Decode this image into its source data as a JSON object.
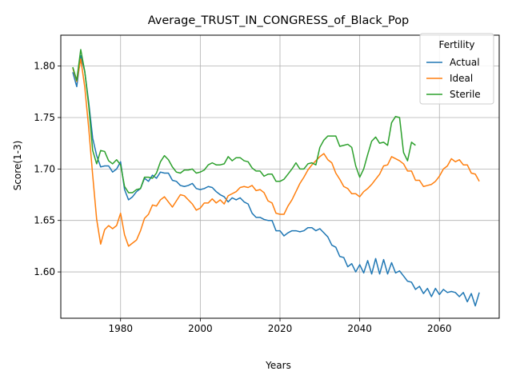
{
  "chart_data": {
    "type": "line",
    "title": "Average_TRUST_IN_CONGRESS_of_Black_Pop",
    "xlabel": "Years",
    "ylabel": "Score(1-3)",
    "xlim": [
      1965,
      2075
    ],
    "ylim": [
      1.555,
      1.83
    ],
    "xticks": [
      1980,
      2000,
      2020,
      2040,
      2060
    ],
    "yticks": [
      1.6,
      1.65,
      1.7,
      1.75,
      1.8
    ],
    "ytick_labels": [
      "1.60",
      "1.65",
      "1.70",
      "1.75",
      "1.80"
    ],
    "grid": true,
    "legend": {
      "title": "Fertility",
      "placement": "top-right"
    },
    "series": [
      {
        "name": "Actual",
        "color": "#1f77b4",
        "x": [
          1968,
          1969,
          1970,
          1971,
          1972,
          1973,
          1974,
          1975,
          1976,
          1977,
          1978,
          1979,
          1980,
          1981,
          1982,
          1983,
          1984,
          1985,
          1986,
          1987,
          1988,
          1989,
          1990,
          1991,
          1992,
          1993,
          1994,
          1995,
          1996,
          1997,
          1998,
          1999,
          2000,
          2001,
          2002,
          2003,
          2004,
          2005,
          2006,
          2007,
          2008,
          2009,
          2010,
          2011,
          2012,
          2013,
          2014,
          2015,
          2016,
          2017,
          2018,
          2019,
          2020,
          2021,
          2022,
          2023,
          2024,
          2025,
          2026,
          2027,
          2028,
          2029,
          2030,
          2031,
          2032,
          2033,
          2034,
          2035,
          2036,
          2037,
          2038,
          2039,
          2040,
          2041,
          2042,
          2043,
          2044,
          2045,
          2046,
          2047,
          2048,
          2049,
          2050,
          2051,
          2052,
          2053,
          2054,
          2055,
          2056,
          2057,
          2058,
          2059,
          2060,
          2061,
          2062,
          2063,
          2064,
          2065,
          2066,
          2067,
          2068,
          2069,
          2070
        ],
        "values": [
          1.794,
          1.78,
          1.81,
          1.795,
          1.765,
          1.73,
          1.713,
          1.702,
          1.703,
          1.703,
          1.697,
          1.7,
          1.707,
          1.68,
          1.67,
          1.673,
          1.678,
          1.681,
          1.691,
          1.688,
          1.694,
          1.691,
          1.697,
          1.696,
          1.696,
          1.689,
          1.688,
          1.684,
          1.683,
          1.684,
          1.686,
          1.681,
          1.68,
          1.681,
          1.683,
          1.682,
          1.678,
          1.675,
          1.673,
          1.668,
          1.672,
          1.67,
          1.672,
          1.668,
          1.666,
          1.657,
          1.653,
          1.653,
          1.651,
          1.65,
          1.65,
          1.64,
          1.64,
          1.635,
          1.638,
          1.64,
          1.64,
          1.639,
          1.64,
          1.643,
          1.643,
          1.64,
          1.642,
          1.638,
          1.634,
          1.626,
          1.624,
          1.615,
          1.614,
          1.605,
          1.608,
          1.6,
          1.607,
          1.599,
          1.611,
          1.598,
          1.613,
          1.598,
          1.612,
          1.598,
          1.609,
          1.599,
          1.601,
          1.596,
          1.591,
          1.59,
          1.583,
          1.586,
          1.579,
          1.584,
          1.576,
          1.584,
          1.578,
          1.583,
          1.58,
          1.581,
          1.58,
          1.576,
          1.58,
          1.571,
          1.579,
          1.567,
          1.58
        ]
      },
      {
        "name": "Ideal",
        "color": "#ff7f0e",
        "x": [
          1968,
          1969,
          1970,
          1971,
          1972,
          1973,
          1974,
          1975,
          1976,
          1977,
          1978,
          1979,
          1980,
          1981,
          1982,
          1983,
          1984,
          1985,
          1986,
          1987,
          1988,
          1989,
          1990,
          1991,
          1992,
          1993,
          1994,
          1995,
          1996,
          1997,
          1998,
          1999,
          2000,
          2001,
          2002,
          2003,
          2004,
          2005,
          2006,
          2007,
          2008,
          2009,
          2010,
          2011,
          2012,
          2013,
          2014,
          2015,
          2016,
          2017,
          2018,
          2019,
          2020,
          2021,
          2022,
          2023,
          2024,
          2025,
          2026,
          2027,
          2028,
          2029,
          2030,
          2031,
          2032,
          2033,
          2034,
          2035,
          2036,
          2037,
          2038,
          2039,
          2040,
          2041,
          2042,
          2043,
          2044,
          2045,
          2046,
          2047,
          2048,
          2049,
          2050,
          2051,
          2052,
          2053,
          2054,
          2055,
          2056,
          2057,
          2058,
          2059,
          2060,
          2061,
          2062,
          2063,
          2064,
          2065,
          2066,
          2067,
          2068,
          2069,
          2070
        ],
        "values": [
          1.798,
          1.785,
          1.807,
          1.78,
          1.74,
          1.694,
          1.651,
          1.627,
          1.641,
          1.645,
          1.642,
          1.645,
          1.657,
          1.636,
          1.625,
          1.628,
          1.631,
          1.64,
          1.652,
          1.656,
          1.665,
          1.664,
          1.67,
          1.673,
          1.668,
          1.663,
          1.669,
          1.675,
          1.674,
          1.67,
          1.666,
          1.66,
          1.662,
          1.667,
          1.667,
          1.671,
          1.667,
          1.67,
          1.666,
          1.674,
          1.676,
          1.678,
          1.682,
          1.683,
          1.682,
          1.684,
          1.679,
          1.68,
          1.677,
          1.669,
          1.667,
          1.657,
          1.656,
          1.656,
          1.664,
          1.67,
          1.678,
          1.686,
          1.692,
          1.699,
          1.704,
          1.708,
          1.712,
          1.715,
          1.709,
          1.706,
          1.696,
          1.69,
          1.683,
          1.681,
          1.676,
          1.676,
          1.673,
          1.678,
          1.681,
          1.685,
          1.69,
          1.695,
          1.703,
          1.704,
          1.712,
          1.71,
          1.708,
          1.705,
          1.698,
          1.698,
          1.689,
          1.689,
          1.683,
          1.684,
          1.685,
          1.688,
          1.693,
          1.7,
          1.703,
          1.71,
          1.707,
          1.709,
          1.704,
          1.704,
          1.696,
          1.695,
          1.688
        ]
      },
      {
        "name": "Sterile",
        "color": "#2ca02c",
        "x": [
          1968,
          1969,
          1970,
          1971,
          1972,
          1973,
          1974,
          1975,
          1976,
          1977,
          1978,
          1979,
          1980,
          1981,
          1982,
          1983,
          1984,
          1985,
          1986,
          1987,
          1988,
          1989,
          1990,
          1991,
          1992,
          1993,
          1994,
          1995,
          1996,
          1997,
          1998,
          1999,
          2000,
          2001,
          2002,
          2003,
          2004,
          2005,
          2006,
          2007,
          2008,
          2009,
          2010,
          2011,
          2012,
          2013,
          2014,
          2015,
          2016,
          2017,
          2018,
          2019,
          2020,
          2021,
          2022,
          2023,
          2024,
          2025,
          2026,
          2027,
          2028,
          2029,
          2030,
          2031,
          2032,
          2033,
          2034,
          2035,
          2036,
          2037,
          2038,
          2039,
          2040,
          2041,
          2042,
          2043,
          2044,
          2045,
          2046,
          2047,
          2048,
          2049,
          2050,
          2051,
          2052,
          2053,
          2054
        ],
        "values": [
          1.799,
          1.786,
          1.816,
          1.795,
          1.762,
          1.718,
          1.705,
          1.718,
          1.717,
          1.708,
          1.705,
          1.709,
          1.704,
          1.683,
          1.677,
          1.677,
          1.68,
          1.681,
          1.692,
          1.692,
          1.691,
          1.696,
          1.707,
          1.713,
          1.709,
          1.702,
          1.697,
          1.696,
          1.699,
          1.699,
          1.7,
          1.696,
          1.697,
          1.699,
          1.704,
          1.706,
          1.704,
          1.704,
          1.705,
          1.712,
          1.708,
          1.711,
          1.711,
          1.708,
          1.707,
          1.701,
          1.698,
          1.698,
          1.693,
          1.695,
          1.695,
          1.688,
          1.688,
          1.69,
          1.695,
          1.7,
          1.706,
          1.7,
          1.7,
          1.705,
          1.706,
          1.704,
          1.721,
          1.728,
          1.732,
          1.732,
          1.732,
          1.722,
          1.723,
          1.724,
          1.721,
          1.703,
          1.692,
          1.7,
          1.714,
          1.727,
          1.731,
          1.725,
          1.726,
          1.723,
          1.745,
          1.751,
          1.75,
          1.716,
          1.708,
          1.726,
          1.723
        ]
      }
    ]
  }
}
